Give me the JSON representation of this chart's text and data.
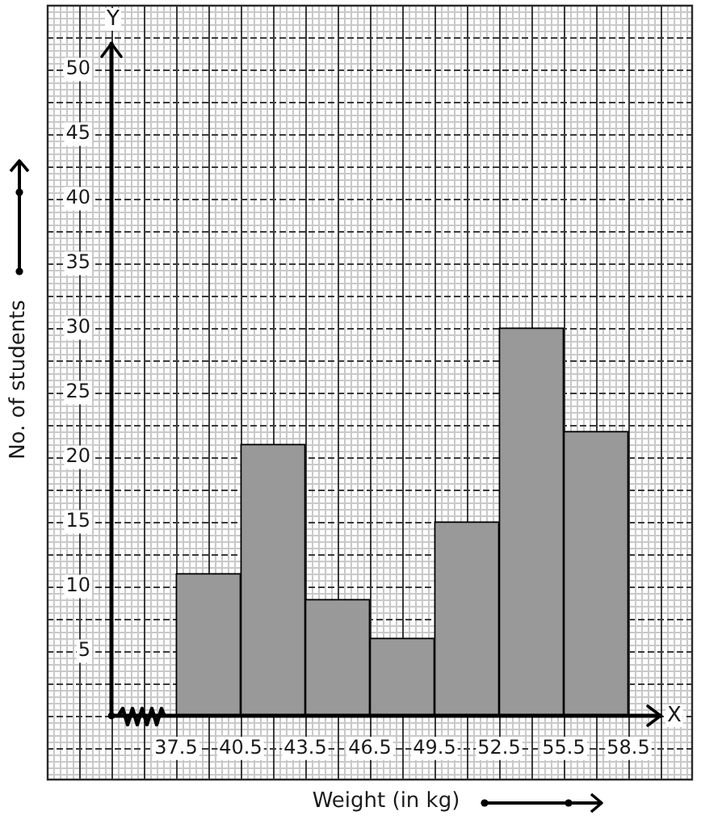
{
  "chart_data": {
    "type": "histogram",
    "xlabel": "Weight (in kg)",
    "ylabel": "No. of students",
    "bins": [
      37.5,
      40.5,
      43.5,
      46.5,
      49.5,
      52.5,
      55.5,
      58.5
    ],
    "values": [
      11,
      21,
      9,
      6,
      15,
      30,
      22
    ],
    "color": "#999999",
    "xlim": [
      34.5,
      60
    ],
    "xticks": [
      37.5,
      40.5,
      43.5,
      46.5,
      49.5,
      52.5,
      55.5,
      58.5
    ],
    "ylim": [
      0,
      52
    ],
    "yticks": [
      5,
      10,
      15,
      20,
      25,
      30,
      35,
      40,
      45,
      50
    ],
    "grid": true,
    "annotations": [
      "X",
      "Y"
    ]
  }
}
